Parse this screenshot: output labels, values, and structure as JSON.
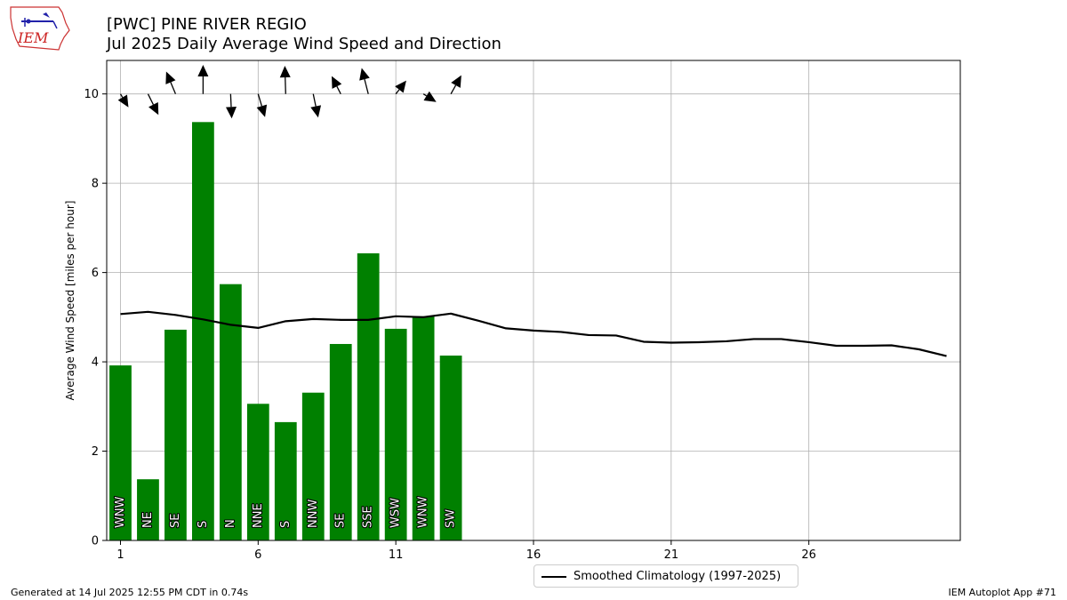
{
  "header": {
    "logo_text": "IEM",
    "title_line1": "[PWC] PINE RIVER REGIO",
    "title_line2": "Jul 2025 Daily Average Wind Speed and Direction"
  },
  "footer": {
    "generated": "Generated at 14 Jul 2025 12:55 PM CDT in 0.74s",
    "app": "IEM Autoplot App #71"
  },
  "colors": {
    "bar": "#008000",
    "climatology_line": "#000000",
    "grid": "#b0b0b0",
    "label_text": "#ffffff",
    "label_outline": "#000000"
  },
  "chart_data": {
    "type": "bar",
    "title": "[PWC] PINE RIVER REGIO",
    "subtitle": "Jul 2025 Daily Average Wind Speed and Direction",
    "xlabel": "",
    "ylabel": "Average Wind Speed [miles per hour]",
    "xlim": [
      0.5,
      31.5
    ],
    "ylim": [
      0,
      10.75
    ],
    "xticks": [
      1,
      6,
      11,
      16,
      21,
      26
    ],
    "yticks": [
      0,
      2,
      4,
      6,
      8,
      10
    ],
    "grid": true,
    "legend_position": "bottom-center",
    "days": [
      1,
      2,
      3,
      4,
      5,
      6,
      7,
      8,
      9,
      10,
      11,
      12,
      13
    ],
    "avg_speed": [
      3.92,
      1.37,
      4.72,
      9.37,
      5.74,
      3.06,
      2.65,
      3.31,
      4.4,
      6.43,
      4.74,
      5.02,
      4.14
    ],
    "direction_labels": [
      "WNW",
      "NE",
      "SE",
      "S",
      "N",
      "NNE",
      "S",
      "NNW",
      "SE",
      "SSE",
      "WSW",
      "WNW",
      "SW"
    ],
    "arrow_dx": [
      0.29,
      0.38,
      -0.34,
      0.0,
      0.04,
      0.25,
      -0.03,
      0.18,
      -0.33,
      -0.24,
      0.38,
      0.47,
      0.38
    ],
    "arrow_dy": [
      -0.3,
      -0.47,
      0.5,
      0.65,
      -0.55,
      -0.52,
      0.63,
      -0.53,
      0.4,
      0.58,
      0.3,
      -0.18,
      0.42
    ],
    "climatology": {
      "name": "Smoothed Climatology (1997-2025)",
      "x": [
        1,
        2,
        3,
        4,
        5,
        6,
        7,
        8,
        9,
        10,
        11,
        12,
        13,
        14,
        15,
        16,
        17,
        18,
        19,
        20,
        21,
        22,
        23,
        24,
        25,
        26,
        27,
        28,
        29,
        30,
        31
      ],
      "y": [
        5.07,
        5.12,
        5.05,
        4.95,
        4.83,
        4.76,
        4.91,
        4.96,
        4.94,
        4.94,
        5.02,
        5.0,
        5.08,
        4.92,
        4.75,
        4.7,
        4.67,
        4.6,
        4.59,
        4.45,
        4.43,
        4.44,
        4.46,
        4.51,
        4.51,
        4.44,
        4.36,
        4.36,
        4.37,
        4.28,
        4.13
      ]
    }
  }
}
